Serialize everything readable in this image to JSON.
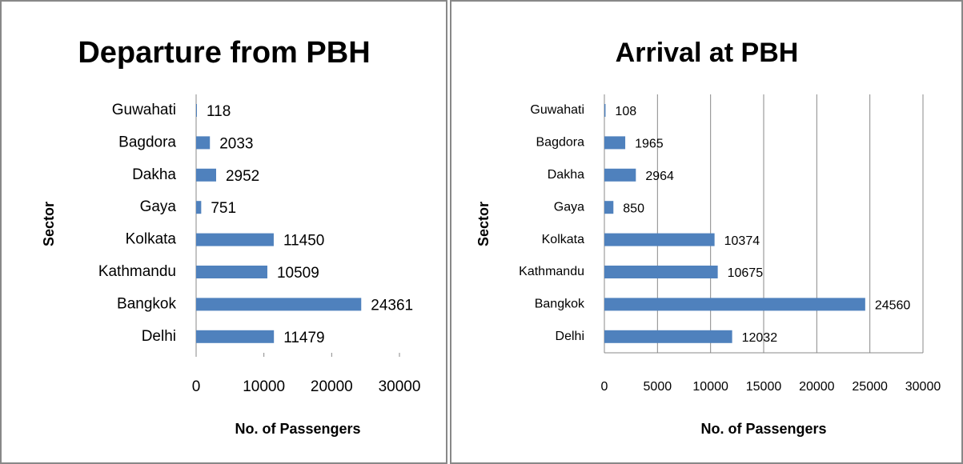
{
  "chart_data": [
    {
      "type": "bar",
      "orientation": "horizontal",
      "title": "Departure from PBH",
      "y_label": "Sector",
      "x_label": "No. of Passengers",
      "categories": [
        "Guwahati",
        "Bagdora",
        "Dakha",
        "Gaya",
        "Kolkata",
        "Kathmandu",
        "Bangkok",
        "Delhi"
      ],
      "values": [
        118,
        2033,
        2952,
        751,
        11450,
        10509,
        24361,
        11479
      ],
      "color": "#4f81bd",
      "xlim": [
        0,
        30000
      ],
      "xticks": [
        0,
        10000,
        20000,
        30000
      ],
      "grid": false
    },
    {
      "type": "bar",
      "orientation": "horizontal",
      "title": "Arrival at PBH",
      "y_label": "Sector",
      "x_label": "No. of Passengers",
      "categories": [
        "Guwahati",
        "Bagdora",
        "Dakha",
        "Gaya",
        "Kolkata",
        "Kathmandu",
        "Bangkok",
        "Delhi"
      ],
      "values": [
        108,
        1965,
        2964,
        850,
        10374,
        10675,
        24560,
        12032
      ],
      "color": "#4f81bd",
      "xlim": [
        0,
        30000
      ],
      "xticks": [
        0,
        5000,
        10000,
        15000,
        20000,
        25000,
        30000
      ],
      "grid": true
    }
  ]
}
